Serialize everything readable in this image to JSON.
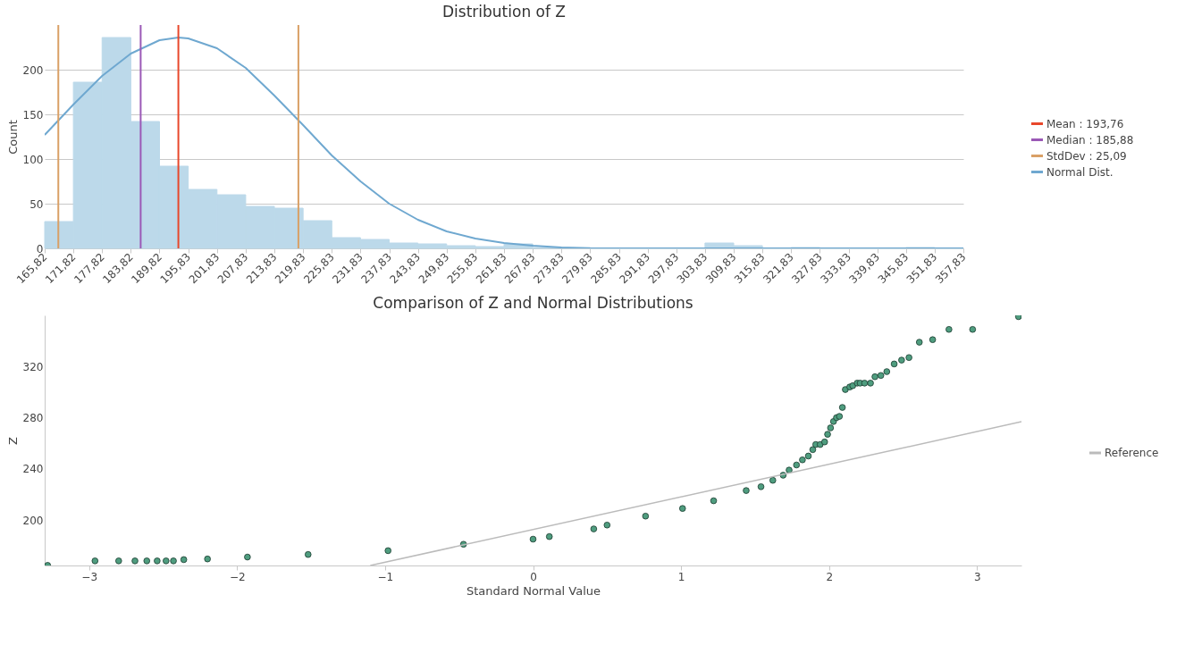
{
  "chart_data": [
    {
      "type": "histogram",
      "title": "Distribution of Z",
      "ylabel": "Count",
      "bins": [
        165.82,
        171.82,
        177.82,
        183.82,
        189.82,
        195.83,
        201.83,
        207.83,
        213.83,
        219.83,
        225.83,
        231.83,
        237.83,
        243.83,
        249.83,
        255.83,
        261.83,
        267.83,
        273.83,
        279.83,
        285.83,
        291.83,
        297.83,
        303.83,
        309.83,
        315.83,
        321.83,
        327.83,
        333.83,
        339.83,
        345.83,
        351.83,
        357.83
      ],
      "values": [
        30,
        186,
        236,
        142,
        92,
        66,
        60,
        47,
        45,
        31,
        12,
        10,
        6,
        5,
        3,
        2,
        5,
        1,
        1,
        0,
        0,
        0,
        0,
        6,
        3,
        0,
        1,
        0,
        0,
        0,
        1,
        0
      ],
      "color": "#bcd9ea",
      "series": [
        {
          "name": "Normal Dist.",
          "type": "line",
          "color": "#6fa8d0",
          "x": [
            165.82,
            171.82,
            177.82,
            183.82,
            189.82,
            193.76,
            195.83,
            201.83,
            207.83,
            213.83,
            219.83,
            225.83,
            231.83,
            237.83,
            243.83,
            249.83,
            255.83,
            261.83,
            267.83,
            273.83,
            279.83,
            357.83
          ],
          "values": [
            127,
            161,
            193,
            218,
            233,
            236,
            235,
            224,
            202,
            171,
            138,
            104,
            75,
            50,
            32,
            19,
            11,
            6,
            3,
            1,
            0,
            0
          ]
        }
      ],
      "ref_lines": [
        {
          "axis": "x",
          "value": 193.76,
          "color": "#e8472b"
        },
        {
          "axis": "x",
          "value": 185.88,
          "color": "#9b59b6"
        },
        {
          "axis": "x",
          "value": 168.67,
          "color": "#d9a066"
        },
        {
          "axis": "x",
          "value": 218.85,
          "color": "#d9a066"
        }
      ],
      "annotations": [
        "Mean : 193,76",
        "Median : 185,88",
        "StdDev : 25,09"
      ],
      "xlim": [
        165.82,
        357.83
      ],
      "ylim": [
        0,
        250
      ],
      "xticks": [
        {
          "value": 165.82,
          "label": "165,82"
        },
        {
          "value": 171.82,
          "label": "171,82"
        },
        {
          "value": 177.82,
          "label": "177,82"
        },
        {
          "value": 183.82,
          "label": "183,82"
        },
        {
          "value": 189.82,
          "label": "189,82"
        },
        {
          "value": 195.83,
          "label": "195,83"
        },
        {
          "value": 201.83,
          "label": "201,83"
        },
        {
          "value": 207.83,
          "label": "207,83"
        },
        {
          "value": 213.83,
          "label": "213,83"
        },
        {
          "value": 219.83,
          "label": "219,83"
        },
        {
          "value": 225.83,
          "label": "225,83"
        },
        {
          "value": 231.83,
          "label": "231,83"
        },
        {
          "value": 237.83,
          "label": "237,83"
        },
        {
          "value": 243.83,
          "label": "243,83"
        },
        {
          "value": 249.83,
          "label": "249,83"
        },
        {
          "value": 255.83,
          "label": "255,83"
        },
        {
          "value": 261.83,
          "label": "261,83"
        },
        {
          "value": 267.83,
          "label": "267,83"
        },
        {
          "value": 273.83,
          "label": "273,83"
        },
        {
          "value": 279.83,
          "label": "279,83"
        },
        {
          "value": 285.83,
          "label": "285,83"
        },
        {
          "value": 291.83,
          "label": "291,83"
        },
        {
          "value": 297.83,
          "label": "297,83"
        },
        {
          "value": 303.83,
          "label": "303,83"
        },
        {
          "value": 309.83,
          "label": "309,83"
        },
        {
          "value": 315.83,
          "label": "315,83"
        },
        {
          "value": 321.83,
          "label": "321,83"
        },
        {
          "value": 327.83,
          "label": "327,83"
        },
        {
          "value": 333.83,
          "label": "333,83"
        },
        {
          "value": 339.83,
          "label": "339,83"
        },
        {
          "value": 345.83,
          "label": "345,83"
        },
        {
          "value": 351.83,
          "label": "351,83"
        },
        {
          "value": 357.83,
          "label": "357,83"
        }
      ],
      "yticks": [
        0,
        50,
        100,
        150,
        200
      ],
      "grid": "y",
      "legend": "right"
    },
    {
      "type": "scatter",
      "title": "Comparison of Z and Normal Distributions",
      "xlabel": "Standard Normal Value",
      "ylabel": "Z",
      "series": [
        {
          "type": "scatter",
          "marker": "circle",
          "color": "#4f9d7f",
          "x": [
            -3.28,
            -2.96,
            -2.8,
            -2.69,
            -2.61,
            -2.54,
            -2.48,
            -2.43,
            -2.36,
            -2.2,
            -1.93,
            -1.52,
            -0.98,
            -0.47,
            0,
            0.11,
            0.41,
            0.5,
            0.76,
            1.01,
            1.22,
            1.44,
            1.54,
            1.62,
            1.69,
            1.73,
            1.78,
            1.82,
            1.86,
            1.89,
            1.91,
            1.94,
            1.97,
            1.99,
            2.01,
            2.03,
            2.05,
            2.07,
            2.09,
            2.11,
            2.14,
            2.16,
            2.19,
            2.21,
            2.24,
            2.28,
            2.31,
            2.35,
            2.39,
            2.44,
            2.49,
            2.54,
            2.61,
            2.7,
            2.81,
            2.97,
            3.28
          ],
          "values": [
            164.5,
            168,
            168,
            168,
            168,
            168,
            168,
            168,
            169,
            169.5,
            171,
            173,
            176,
            181,
            185,
            187,
            193,
            196,
            203,
            209,
            215,
            223,
            226,
            231,
            235,
            239,
            243,
            247,
            250,
            255,
            259,
            259,
            261,
            267,
            272,
            277,
            280,
            281,
            288,
            302,
            304,
            305,
            307,
            307,
            307,
            307,
            312,
            313,
            316,
            322,
            325,
            327,
            339,
            341,
            349,
            349,
            359
          ]
        },
        {
          "name": "Reference",
          "type": "line",
          "color": "#bbbbbb",
          "x": [
            -1.1,
            3.3
          ],
          "values": [
            164.4,
            276.8
          ]
        }
      ],
      "xlim": [
        -3.3,
        3.3
      ],
      "ylim": [
        164.4,
        360
      ],
      "xticks": [
        -3,
        -2,
        -1,
        0,
        1,
        2,
        3
      ],
      "yticks": [
        200,
        240,
        280,
        320
      ],
      "legend": "right"
    }
  ]
}
